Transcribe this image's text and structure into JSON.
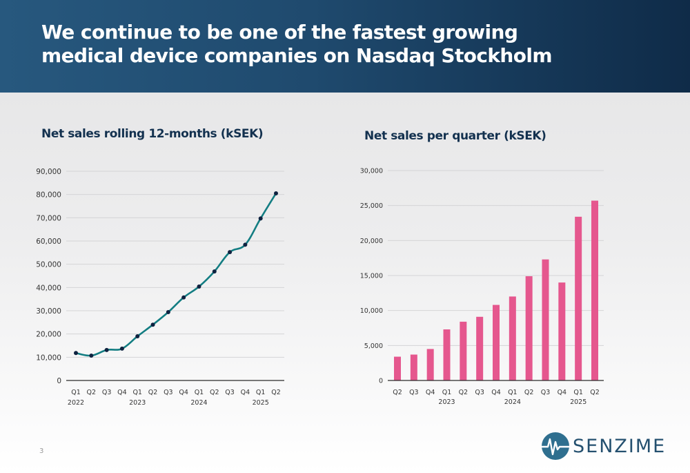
{
  "slide": {
    "title": "We continue to be one of the fastest growing medical device companies on Nasdaq Stockholm",
    "page_number": "3",
    "logo_text": "SENZIME"
  },
  "colors": {
    "header_start": "#27587e",
    "header_end": "#0f2b48",
    "line": "#137d82",
    "marker": "#0f2240",
    "bar": "#e5578e",
    "title_text": "#13314f"
  },
  "chart_data": [
    {
      "type": "line",
      "title": "Net sales rolling 12-months (kSEK)",
      "x": [
        "Q1",
        "Q2",
        "Q3",
        "Q4",
        "Q1",
        "Q2",
        "Q3",
        "Q4",
        "Q1",
        "Q2",
        "Q3",
        "Q4",
        "Q1",
        "Q2"
      ],
      "year_labels": [
        {
          "label": "2022",
          "index": 0
        },
        {
          "label": "2023",
          "index": 4
        },
        {
          "label": "2024",
          "index": 8
        },
        {
          "label": "2025",
          "index": 12
        }
      ],
      "series": [
        {
          "values": [
            11800,
            10700,
            13100,
            13700,
            19000,
            24000,
            29400,
            35700,
            40400,
            46900,
            55200,
            58400,
            69700,
            80500
          ]
        }
      ],
      "ylim": [
        0,
        90000
      ],
      "yticks": [
        0,
        10000,
        20000,
        30000,
        40000,
        50000,
        60000,
        70000,
        80000,
        90000
      ],
      "ytick_labels": [
        "0",
        "10,000",
        "20,000",
        "30,000",
        "40,000",
        "50,000",
        "60,000",
        "70,000",
        "80,000",
        "90,000"
      ],
      "grid": true,
      "markers": true
    },
    {
      "type": "bar",
      "title": "Net sales per quarter (kSEK)",
      "categories": [
        "Q2",
        "Q3",
        "Q4",
        "Q1",
        "Q2",
        "Q3",
        "Q4",
        "Q1",
        "Q2",
        "Q3",
        "Q4",
        "Q1",
        "Q2"
      ],
      "year_labels": [
        {
          "label": "2023",
          "index": 3
        },
        {
          "label": "2024",
          "index": 7
        },
        {
          "label": "2025",
          "index": 11
        }
      ],
      "values": [
        3400,
        3700,
        4500,
        7300,
        8400,
        9100,
        10800,
        12000,
        14900,
        17300,
        14000,
        23400,
        25700
      ],
      "ylim": [
        0,
        30000
      ],
      "yticks": [
        0,
        5000,
        10000,
        15000,
        20000,
        25000,
        30000
      ],
      "ytick_labels": [
        "0",
        "5,000",
        "10,000",
        "15,000",
        "20,000",
        "25,000",
        "30,000"
      ],
      "grid": true
    }
  ]
}
